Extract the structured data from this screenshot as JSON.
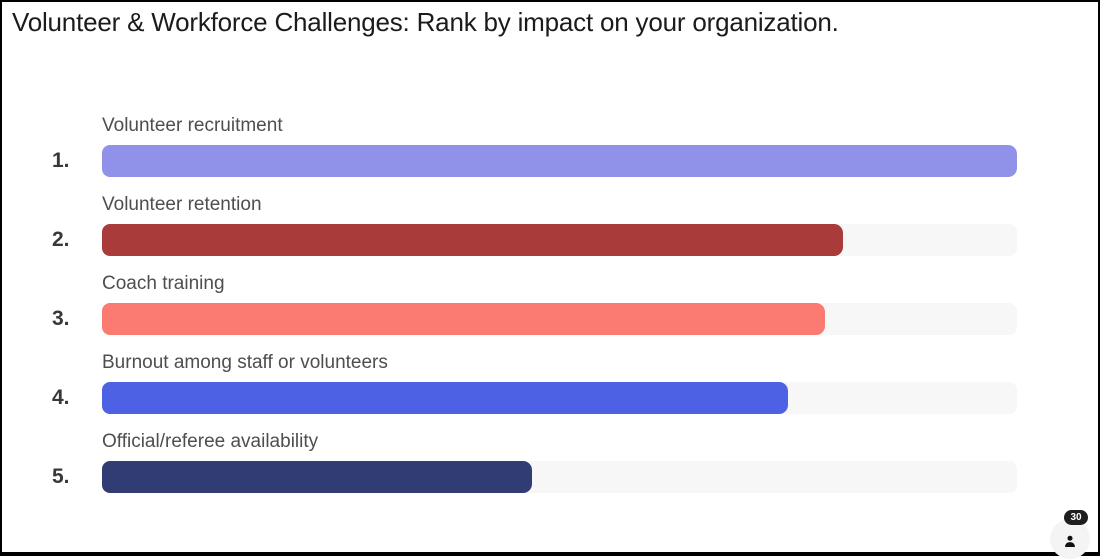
{
  "page": {
    "title": "Volunteer & Workforce Challenges: Rank by impact on your organization."
  },
  "participants": {
    "count": "30",
    "icon": "person-icon"
  },
  "rows": [
    {
      "rank": "1.",
      "label": "Volunteer recruitment",
      "pct": 100,
      "color": "#9091e9"
    },
    {
      "rank": "2.",
      "label": "Volunteer retention",
      "pct": 81,
      "color": "#a93b3b"
    },
    {
      "rank": "3.",
      "label": "Coach training",
      "pct": 79,
      "color": "#fb7a72"
    },
    {
      "rank": "4.",
      "label": "Burnout among staff or volunteers",
      "pct": 75,
      "color": "#4d61e4"
    },
    {
      "rank": "5.",
      "label": "Official/referee availability",
      "pct": 47,
      "color": "#313b74"
    }
  ],
  "chart_data": {
    "type": "bar",
    "orientation": "horizontal",
    "title": "Volunteer & Workforce Challenges: Rank by impact on your organization.",
    "categories": [
      "Volunteer recruitment",
      "Volunteer retention",
      "Coach training",
      "Burnout among staff or volunteers",
      "Official/referee availability"
    ],
    "rank_labels": [
      "1.",
      "2.",
      "3.",
      "4.",
      "5."
    ],
    "values": [
      100,
      81,
      79,
      75,
      47
    ],
    "value_unit": "percent-of-track",
    "xlim": [
      0,
      100
    ],
    "bar_colors": [
      "#9091e9",
      "#a93b3b",
      "#fb7a72",
      "#4d61e4",
      "#313b74"
    ],
    "track_color": "#f7f7f8",
    "grid": false,
    "legend": false,
    "annotations": [
      "participant count badge: 30"
    ]
  }
}
